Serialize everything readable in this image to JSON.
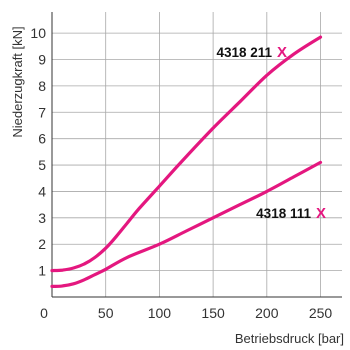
{
  "chart_data": {
    "type": "line",
    "xlabel": "Betriebsdruck [bar]",
    "ylabel": "Niederzugkraft [kN]",
    "xlim": [
      0,
      270
    ],
    "ylim": [
      0,
      10.8
    ],
    "xticks": [
      0,
      50,
      100,
      150,
      200,
      250
    ],
    "yticks": [
      1,
      2,
      3,
      4,
      5,
      6,
      7,
      8,
      9,
      10
    ],
    "grid": true,
    "line_color": "#e4177f",
    "series": [
      {
        "name": "4318 211",
        "marker": "X",
        "x": [
          0,
          10,
          20,
          30,
          40,
          50,
          60,
          70,
          80,
          100,
          120,
          150,
          175,
          200,
          225,
          250
        ],
        "y": [
          1.0,
          1.02,
          1.1,
          1.25,
          1.5,
          1.85,
          2.3,
          2.8,
          3.3,
          4.2,
          5.1,
          6.4,
          7.4,
          8.4,
          9.2,
          9.85
        ]
      },
      {
        "name": "4318 111",
        "marker": "X",
        "x": [
          0,
          10,
          20,
          30,
          40,
          50,
          70,
          100,
          125,
          150,
          175,
          200,
          225,
          250
        ],
        "y": [
          0.4,
          0.42,
          0.5,
          0.65,
          0.85,
          1.05,
          1.5,
          2.0,
          2.5,
          3.0,
          3.5,
          4.0,
          4.55,
          5.1
        ]
      }
    ]
  }
}
